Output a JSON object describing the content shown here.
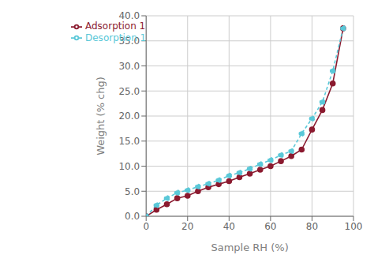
{
  "chart_data": {
    "type": "line",
    "xlabel": "Sample RH (%)",
    "ylabel": "Weight (% chg)",
    "x": [
      0,
      5,
      10,
      15,
      20,
      25,
      30,
      35,
      40,
      45,
      50,
      55,
      60,
      65,
      70,
      75,
      80,
      85,
      90,
      95
    ],
    "series": [
      {
        "name": "Adsorption 1",
        "color": "#8b1a2f",
        "marker": "circle",
        "line_style": "solid",
        "values": [
          0.0,
          1.3,
          2.4,
          3.6,
          4.1,
          5.0,
          5.8,
          6.4,
          7.0,
          7.8,
          8.5,
          9.3,
          10.0,
          11.0,
          12.0,
          13.3,
          17.3,
          21.2,
          26.5,
          37.5
        ]
      },
      {
        "name": "Desorption 1",
        "color": "#5ac8d8",
        "marker": "circle",
        "line_style": "dashed",
        "values": [
          0.0,
          2.2,
          3.6,
          4.7,
          5.2,
          5.9,
          6.5,
          7.2,
          8.1,
          8.7,
          9.5,
          10.4,
          11.2,
          12.2,
          13.0,
          16.5,
          19.5,
          22.8,
          29.0,
          37.5
        ]
      }
    ],
    "xlim": [
      0,
      100
    ],
    "ylim": [
      0,
      40.0
    ],
    "xticks": [
      0,
      20,
      40,
      60,
      80,
      100
    ],
    "yticks": [
      {
        "value": 0.0,
        "label": "0.0"
      },
      {
        "value": 5.0,
        "label": "5.0"
      },
      {
        "value": 10.0,
        "label": "10.0"
      },
      {
        "value": 15.0,
        "label": "15.0"
      },
      {
        "value": 20.0,
        "label": "20.0"
      },
      {
        "value": 25.0,
        "label": "25.0"
      },
      {
        "value": 30.0,
        "label": "30.0"
      },
      {
        "value": 35.0,
        "label": "35.0"
      },
      {
        "value": 40.0,
        "label": "40.0"
      }
    ],
    "grid": true,
    "legend": "upper left"
  }
}
